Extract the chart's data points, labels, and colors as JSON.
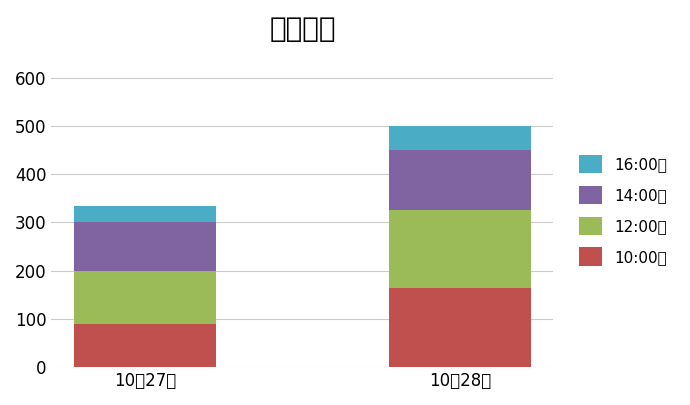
{
  "title": "岩手大学",
  "categories": [
    "10月27日",
    "10月28日"
  ],
  "series": [
    {
      "label": "10:00～",
      "values": [
        90,
        165
      ],
      "color": "#c0504d"
    },
    {
      "label": "12:00～",
      "values": [
        110,
        160
      ],
      "color": "#9bbb59"
    },
    {
      "label": "14:00～",
      "values": [
        100,
        125
      ],
      "color": "#8064a2"
    },
    {
      "label": "16:00～",
      "values": [
        35,
        50
      ],
      "color": "#4bacc6"
    }
  ],
  "ylim": [
    0,
    650
  ],
  "yticks": [
    0,
    100,
    200,
    300,
    400,
    500,
    600
  ],
  "title_fontsize": 20,
  "tick_fontsize": 12,
  "legend_fontsize": 11,
  "bar_width": 0.45,
  "background_color": "#ffffff",
  "grid_color": "#cccccc"
}
